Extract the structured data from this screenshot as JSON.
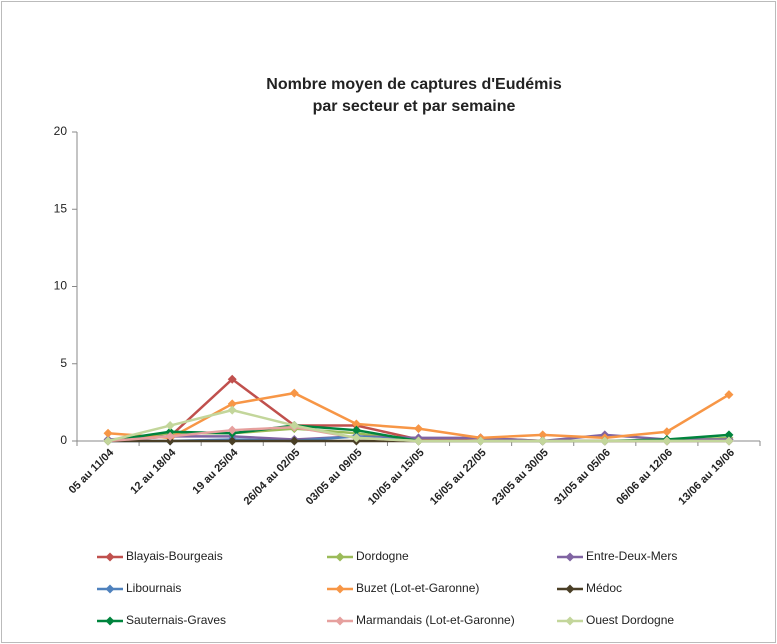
{
  "chart_data": {
    "type": "line",
    "title": [
      "Nombre moyen de captures d'Eudémis",
      "par secteur et par semaine"
    ],
    "categories": [
      "05 au 11/04",
      "12 au 18/04",
      "19 au 25/04",
      "26/04 au 02/05",
      "03/05 au 09/05",
      "10/05 au 15/05",
      "16/05 au 22/05",
      "23/05 au 30/05",
      "31/05 au 05/06",
      "06/06 au 12/06",
      "13/06 au 19/06"
    ],
    "ylim": [
      0,
      20
    ],
    "yticks": [
      0,
      5,
      10,
      15,
      20
    ],
    "grid": false,
    "legend": "bottom",
    "series": [
      {
        "name": "Blayais-Bourgeais",
        "color": "#c0504d",
        "values": [
          0,
          0.3,
          4,
          1,
          1,
          0.1,
          0.2,
          0,
          0,
          0,
          0.1
        ]
      },
      {
        "name": "Dordogne",
        "color": "#9bbb59",
        "values": [
          0,
          0.5,
          0.5,
          0.8,
          0.5,
          0,
          0,
          0,
          0,
          0,
          0.2
        ]
      },
      {
        "name": "Entre-Deux-Mers",
        "color": "#8064a2",
        "values": [
          0.1,
          0.3,
          0.3,
          0.1,
          0.3,
          0.2,
          0.2,
          0,
          0.4,
          0.1,
          0.1
        ]
      },
      {
        "name": "Libournais",
        "color": "#4f81bd",
        "values": [
          0,
          0,
          0.1,
          0,
          0.3,
          0,
          0,
          0,
          0,
          0,
          0
        ]
      },
      {
        "name": "Buzet (Lot-et-Garonne)",
        "color": "#f79646",
        "values": [
          0.5,
          0.2,
          2.4,
          3.1,
          1.1,
          0.8,
          0.2,
          0.4,
          0.2,
          0.6,
          3
        ]
      },
      {
        "name": "Médoc",
        "color": "#4a3f26",
        "values": [
          0,
          0,
          0,
          0,
          0,
          0,
          0,
          0,
          0,
          0,
          0
        ]
      },
      {
        "name": "Sauternais-Graves",
        "color": "#00843d",
        "values": [
          0,
          0.6,
          0.5,
          1,
          0.7,
          0,
          0,
          0,
          0,
          0.1,
          0.4
        ]
      },
      {
        "name": "Marmandais (Lot-et-Garonne)",
        "color": "#e6a09e",
        "values": [
          0,
          0.3,
          0.7,
          0.9,
          0.2,
          0,
          0,
          0,
          0,
          0,
          0
        ]
      },
      {
        "name": "Ouest Dordogne",
        "color": "#c3d69b",
        "values": [
          0,
          1,
          2,
          1,
          0.2,
          0,
          0,
          0,
          0,
          0,
          0
        ]
      }
    ]
  }
}
